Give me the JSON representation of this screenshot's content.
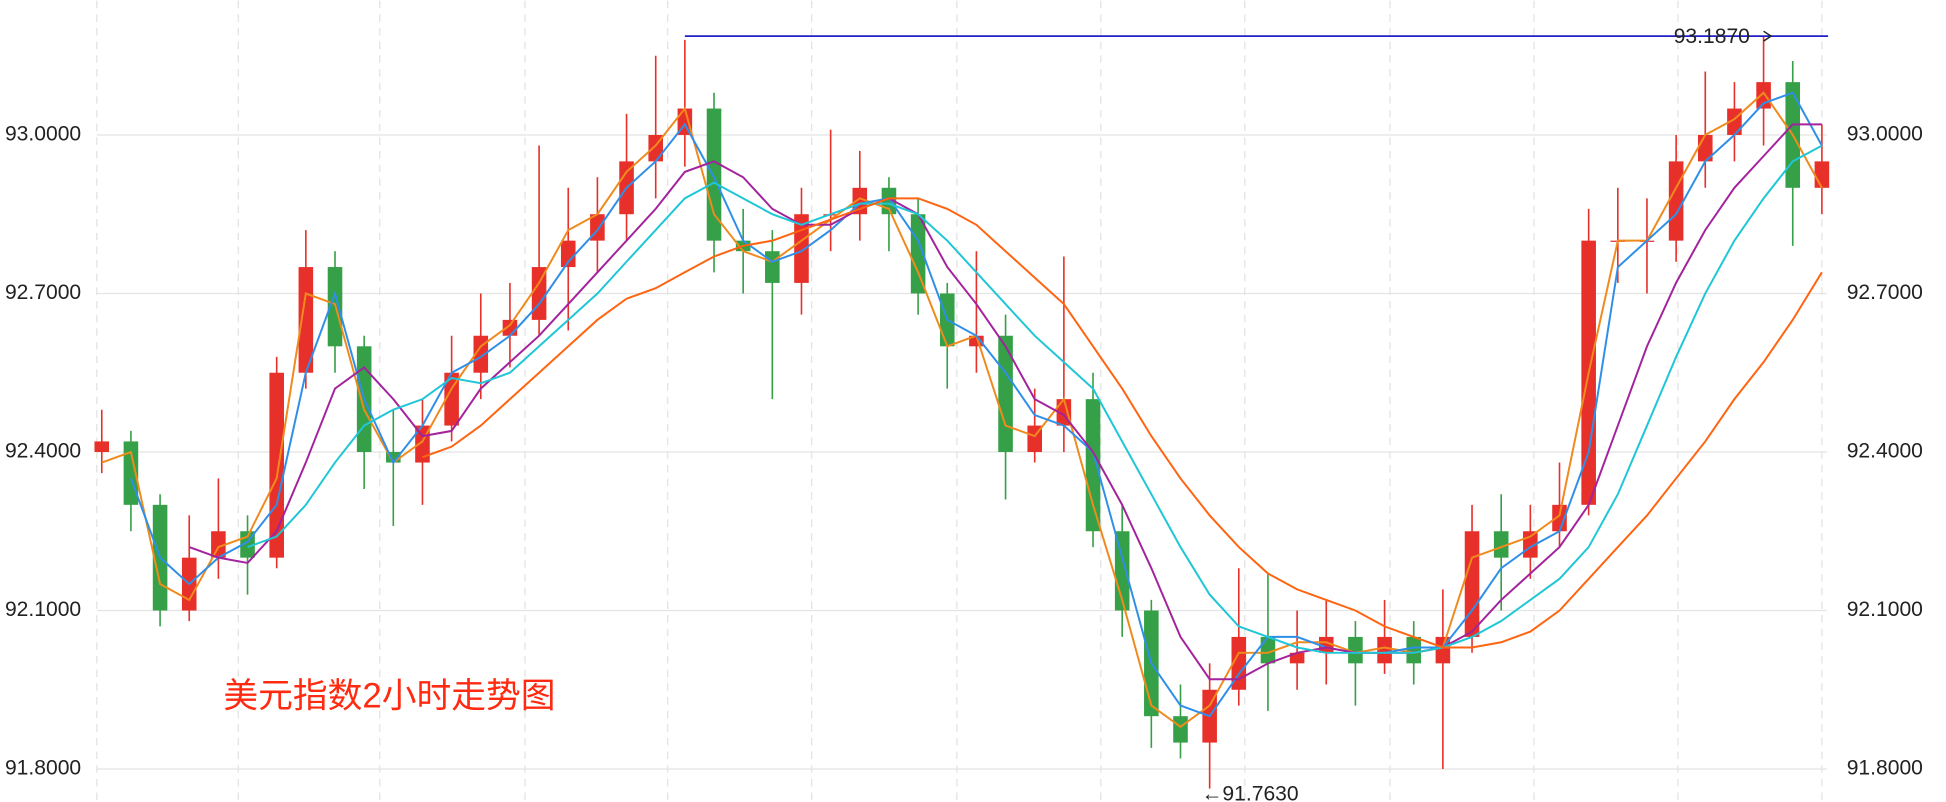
{
  "chart_data": {
    "type": "candlestick",
    "title": "美元指数2小时走势图",
    "open": [
      92.4,
      92.42,
      92.3,
      92.1,
      92.2,
      92.25,
      92.2,
      92.55,
      92.75,
      92.6,
      92.4,
      92.38,
      92.45,
      92.55,
      92.62,
      92.65,
      92.75,
      92.8,
      92.85,
      92.95,
      93.0,
      93.05,
      92.8,
      92.78,
      92.72,
      92.85,
      92.85,
      92.9,
      92.85,
      92.7,
      92.6,
      92.62,
      92.4,
      92.45,
      92.5,
      92.25,
      92.1,
      91.9,
      91.85,
      91.95,
      92.05,
      92.0,
      92.02,
      92.05,
      92.0,
      92.05,
      92.0,
      92.05,
      92.25,
      92.2,
      92.25,
      92.3,
      92.8,
      92.8,
      92.8,
      92.95,
      93.0,
      93.05,
      93.1,
      92.9
    ],
    "high": [
      92.48,
      92.44,
      92.32,
      92.28,
      92.35,
      92.28,
      92.58,
      92.82,
      92.78,
      92.62,
      92.48,
      92.5,
      92.62,
      92.7,
      92.72,
      92.98,
      92.9,
      92.92,
      93.04,
      93.15,
      93.18,
      93.08,
      92.86,
      92.82,
      92.9,
      93.01,
      92.97,
      92.92,
      92.88,
      92.72,
      92.78,
      92.66,
      92.52,
      92.77,
      92.55,
      92.3,
      92.12,
      91.96,
      92.0,
      92.18,
      92.17,
      92.1,
      92.12,
      92.08,
      92.12,
      92.08,
      92.14,
      92.3,
      92.32,
      92.3,
      92.38,
      92.86,
      92.9,
      92.88,
      93.0,
      93.12,
      93.1,
      93.187,
      93.14,
      93.02
    ],
    "low": [
      92.36,
      92.25,
      92.07,
      92.08,
      92.16,
      92.13,
      92.18,
      92.52,
      92.55,
      92.33,
      92.26,
      92.3,
      92.42,
      92.5,
      92.56,
      92.62,
      92.63,
      92.74,
      92.8,
      92.88,
      92.94,
      92.74,
      92.7,
      92.5,
      92.66,
      92.78,
      92.8,
      92.78,
      92.66,
      92.52,
      92.55,
      92.31,
      92.38,
      92.4,
      92.22,
      92.05,
      91.84,
      91.82,
      91.763,
      91.92,
      91.91,
      91.95,
      91.96,
      91.92,
      91.98,
      91.96,
      91.8,
      92.02,
      92.1,
      92.16,
      92.22,
      92.28,
      92.72,
      92.7,
      92.76,
      92.9,
      92.95,
      92.98,
      92.79,
      92.85
    ],
    "close": [
      92.42,
      92.3,
      92.1,
      92.2,
      92.25,
      92.2,
      92.55,
      92.75,
      92.6,
      92.4,
      92.38,
      92.45,
      92.55,
      92.62,
      92.65,
      92.75,
      92.8,
      92.85,
      92.95,
      93.0,
      93.05,
      92.8,
      92.78,
      92.72,
      92.85,
      92.85,
      92.9,
      92.85,
      92.7,
      92.6,
      92.62,
      92.4,
      92.45,
      92.5,
      92.25,
      92.1,
      91.9,
      91.85,
      91.95,
      92.05,
      92.0,
      92.02,
      92.05,
      92.0,
      92.05,
      92.0,
      92.05,
      92.25,
      92.2,
      92.25,
      92.3,
      92.8,
      92.8,
      92.8,
      92.95,
      93.0,
      93.05,
      93.1,
      92.9,
      92.95
    ],
    "up_color": "#e8302a",
    "down_color": "#35a047",
    "series": [
      {
        "color": "#f08a1c",
        "values": [
          92.38,
          92.4,
          92.15,
          92.12,
          92.22,
          92.24,
          92.35,
          92.7,
          92.68,
          92.48,
          92.38,
          92.42,
          92.52,
          92.6,
          92.64,
          92.72,
          92.82,
          92.85,
          92.93,
          92.98,
          93.05,
          92.85,
          92.78,
          92.76,
          92.8,
          92.84,
          92.88,
          92.86,
          92.74,
          92.6,
          92.62,
          92.45,
          92.43,
          92.5,
          92.3,
          92.12,
          91.92,
          91.88,
          91.92,
          92.02,
          92.02,
          92.04,
          92.04,
          92.02,
          92.03,
          92.02,
          92.03,
          92.2,
          92.22,
          92.24,
          92.28,
          92.55,
          92.8,
          92.8,
          92.9,
          93.0,
          93.03,
          93.08,
          93.0,
          92.9
        ]
      },
      {
        "color": "#2f8fe8",
        "values": [
          null,
          92.35,
          92.2,
          92.15,
          92.2,
          92.23,
          92.3,
          92.55,
          92.7,
          92.5,
          92.38,
          92.45,
          92.55,
          92.58,
          92.62,
          92.68,
          92.76,
          92.82,
          92.9,
          92.95,
          93.02,
          92.92,
          92.8,
          92.76,
          92.78,
          92.82,
          92.87,
          92.88,
          92.8,
          92.65,
          92.62,
          92.55,
          92.47,
          92.45,
          92.4,
          92.2,
          92.0,
          91.92,
          91.9,
          91.98,
          92.05,
          92.05,
          92.03,
          92.02,
          92.02,
          92.03,
          92.03,
          92.1,
          92.18,
          92.22,
          92.25,
          92.4,
          92.75,
          92.8,
          92.85,
          92.95,
          93.0,
          93.06,
          93.08,
          92.98
        ]
      },
      {
        "color": "#a3239d",
        "values": [
          null,
          null,
          null,
          92.22,
          92.2,
          92.19,
          92.25,
          92.38,
          92.52,
          92.56,
          92.5,
          92.43,
          92.44,
          92.52,
          92.57,
          92.62,
          92.68,
          92.74,
          92.8,
          92.86,
          92.93,
          92.95,
          92.92,
          92.86,
          92.83,
          92.83,
          92.86,
          92.88,
          92.85,
          92.75,
          92.68,
          92.6,
          92.5,
          92.47,
          92.4,
          92.3,
          92.18,
          92.05,
          91.97,
          91.97,
          92.0,
          92.02,
          92.03,
          92.02,
          92.02,
          92.02,
          92.03,
          92.06,
          92.12,
          92.17,
          92.22,
          92.3,
          92.45,
          92.6,
          92.72,
          92.82,
          92.9,
          92.96,
          93.02,
          93.02
        ]
      },
      {
        "color": "#1fc6d6",
        "values": [
          null,
          null,
          null,
          null,
          null,
          92.22,
          92.24,
          92.3,
          92.38,
          92.45,
          92.48,
          92.5,
          92.54,
          92.53,
          92.55,
          92.6,
          92.65,
          92.7,
          92.76,
          92.82,
          92.88,
          92.91,
          92.88,
          92.85,
          92.83,
          92.85,
          92.87,
          92.87,
          92.85,
          92.8,
          92.74,
          92.68,
          92.62,
          92.57,
          92.52,
          92.42,
          92.32,
          92.22,
          92.13,
          92.07,
          92.05,
          92.03,
          92.02,
          92.02,
          92.02,
          92.02,
          92.03,
          92.05,
          92.08,
          92.12,
          92.16,
          92.22,
          92.32,
          92.45,
          92.58,
          92.7,
          92.8,
          92.88,
          92.95,
          92.98
        ]
      },
      {
        "color": "#ff6410",
        "values": [
          null,
          null,
          null,
          null,
          null,
          null,
          null,
          null,
          null,
          null,
          null,
          92.39,
          92.41,
          92.45,
          92.5,
          92.55,
          92.6,
          92.65,
          92.69,
          92.71,
          92.74,
          92.77,
          92.79,
          92.8,
          92.82,
          92.84,
          92.86,
          92.88,
          92.88,
          92.86,
          92.83,
          92.78,
          92.73,
          92.68,
          92.6,
          92.52,
          92.43,
          92.35,
          92.28,
          92.22,
          92.17,
          92.14,
          92.12,
          92.1,
          92.07,
          92.05,
          92.03,
          92.03,
          92.04,
          92.06,
          92.1,
          92.16,
          92.22,
          92.28,
          92.35,
          92.42,
          92.5,
          92.57,
          92.65,
          92.74
        ]
      }
    ],
    "ylim": [
      91.739,
      93.254
    ],
    "yticks": [
      {
        "value": 91.8,
        "label": "91.8000"
      },
      {
        "value": 92.1,
        "label": "92.1000"
      },
      {
        "value": 92.4,
        "label": "92.4000"
      },
      {
        "value": 92.7,
        "label": "92.7000"
      },
      {
        "value": 93.0,
        "label": "93.0000"
      }
    ],
    "grid": true,
    "annotations": [
      {
        "value": 93.187,
        "label": "93.1870",
        "line_color": "#2020c8"
      },
      {
        "value": 91.763,
        "label": "←91.7630"
      }
    ]
  }
}
